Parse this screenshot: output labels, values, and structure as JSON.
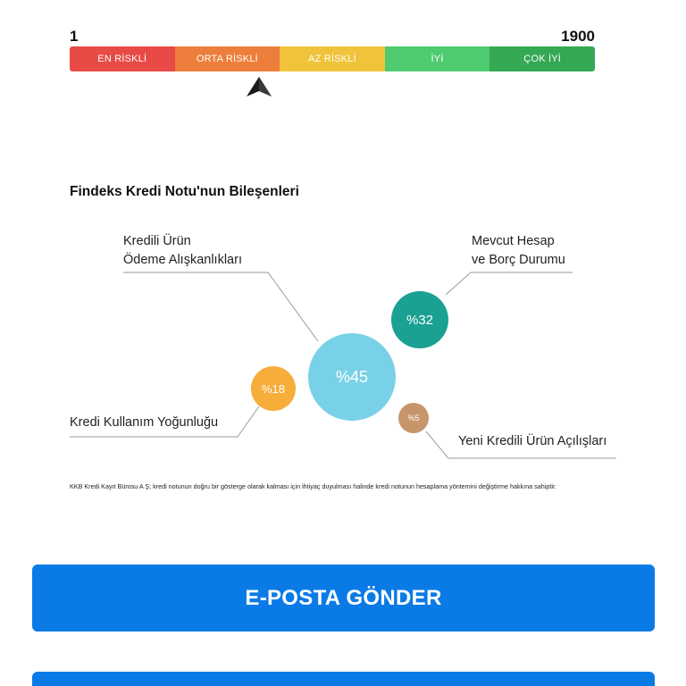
{
  "scale": {
    "min": "1",
    "max": "1900",
    "segments": [
      {
        "label": "EN RİSKLİ",
        "color": "#e84a45"
      },
      {
        "label": "ORTA RİSKLİ",
        "color": "#ed7d3a"
      },
      {
        "label": "AZ RİSKLİ",
        "color": "#f0c33a"
      },
      {
        "label": "İYİ",
        "color": "#4ecb6e"
      },
      {
        "label": "ÇOK İYİ",
        "color": "#34a853"
      }
    ],
    "pointer_segment": "ORTA RİSKLİ"
  },
  "components": {
    "title": "Findeks Kredi Notu'nun Bileşenleri",
    "items": [
      {
        "label_line1": "Kredili Ürün",
        "label_line2": "Ödeme Alışkanlıkları",
        "percent": "%45",
        "color": "#79d1e8"
      },
      {
        "label_line1": "Mevcut Hesap",
        "label_line2": "ve Borç Durumu",
        "percent": "%32",
        "color": "#1aa192"
      },
      {
        "label_line1": "Kredi Kullanım Yoğunluğu",
        "label_line2": "",
        "percent": "%18",
        "color": "#f7ad3a"
      },
      {
        "label_line1": "Yeni Kredili Ürün Açılışları",
        "label_line2": "",
        "percent": "%5",
        "color": "#c7956a"
      }
    ],
    "disclaimer": "KKB Kredi Kayıt Bürosu A Ş; kredi notunun doğru bir gösterge olarak kalması için ihtiyaç duyulması halinde kredi notunun hesaplama yöntemini değiştirme hakkına sahiptir."
  },
  "actions": {
    "email_button": "E-POSTA GÖNDER"
  },
  "colors": {
    "button": "#0a7be6",
    "leader_line": "#9a9a9a"
  }
}
